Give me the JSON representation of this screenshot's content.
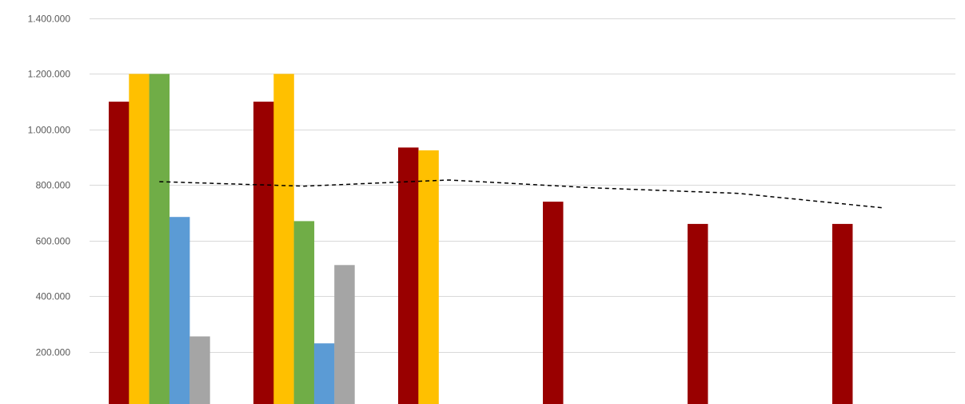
{
  "chart_data": {
    "type": "bar",
    "title": "",
    "xlabel": "",
    "ylabel": "",
    "ylim": [
      0,
      1400000
    ],
    "yticks": [
      {
        "value": 1400000,
        "label": "1.400.000"
      },
      {
        "value": 1200000,
        "label": "1.200.000"
      },
      {
        "value": 1000000,
        "label": "1.000.000"
      },
      {
        "value": 800000,
        "label": "800.000"
      },
      {
        "value": 600000,
        "label": "600.000"
      },
      {
        "value": 400000,
        "label": "400.000"
      },
      {
        "value": 200000,
        "label": "200.000"
      },
      {
        "value": 0,
        "label": "-"
      }
    ],
    "grid": true,
    "legend": "none",
    "group_count": 6,
    "series": [
      {
        "color": "#990000",
        "values": [
          1100000,
          1100000,
          935000,
          740000,
          660000,
          660000
        ]
      },
      {
        "color": "#ffc000",
        "values": [
          1200000,
          1200000,
          925000,
          null,
          null,
          null
        ]
      },
      {
        "color": "#70ad47",
        "values": [
          1200000,
          670000,
          null,
          null,
          null,
          null
        ]
      },
      {
        "color": "#5b9bd5",
        "values": [
          685000,
          230000,
          null,
          null,
          null,
          null
        ]
      },
      {
        "color": "#a5a5a5",
        "values": [
          255000,
          512000,
          null,
          null,
          null,
          null
        ]
      }
    ],
    "trend_line": {
      "style": "dashed",
      "color": "#000000",
      "points": [
        {
          "group": 0,
          "value": 812000
        },
        {
          "group": 1,
          "value": 796000
        },
        {
          "group": 2,
          "value": 818000
        },
        {
          "group": 3,
          "value": 790000
        },
        {
          "group": 4,
          "value": 770000
        },
        {
          "group": 5,
          "value": 718000
        }
      ]
    }
  }
}
